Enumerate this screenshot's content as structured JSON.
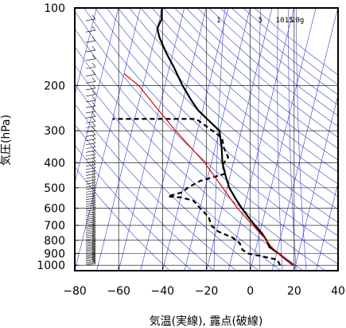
{
  "chart_data": {
    "type": "line",
    "subtype": "skew-T log-P sounding",
    "xlabel": "気温(実線), 露点(破線)",
    "ylabel": "気圧(hPa)",
    "xlim": [
      -80,
      40
    ],
    "ylim": [
      1050,
      100
    ],
    "y_scale": "log",
    "x_ticks": [
      -80,
      -60,
      -40,
      -20,
      0,
      20,
      40
    ],
    "x_tick_labels": [
      "−80",
      "−60",
      "−40",
      "−20",
      "0",
      "20",
      "40"
    ],
    "y_ticks": [
      100,
      200,
      300,
      400,
      500,
      600,
      700,
      800,
      900,
      1000
    ],
    "y_tick_labels": [
      "100",
      "200",
      "300",
      "400",
      "500",
      "600",
      "700",
      "800",
      "900",
      "1000"
    ],
    "mixing_ratio_labels": [
      "1",
      "5",
      "10",
      "15",
      "20g"
    ],
    "grid": true,
    "colors": {
      "temperature": "#000000",
      "dewpoint": "#000000",
      "parcel": "#e00000",
      "adiabats": "#3344cc",
      "grid": "#000000"
    },
    "series": [
      {
        "role": "temperature",
        "style": "solid",
        "points": [
          {
            "p": 1000,
            "t": 19
          },
          {
            "p": 950,
            "t": 15
          },
          {
            "p": 900,
            "t": 11
          },
          {
            "p": 850,
            "t": 6
          },
          {
            "p": 800,
            "t": 4
          },
          {
            "p": 750,
            "t": 1
          },
          {
            "p": 700,
            "t": -3
          },
          {
            "p": 650,
            "t": -7
          },
          {
            "p": 600,
            "t": -11
          },
          {
            "p": 550,
            "t": -15
          },
          {
            "p": 500,
            "t": -19
          },
          {
            "p": 450,
            "t": -22
          },
          {
            "p": 400,
            "t": -25
          },
          {
            "p": 350,
            "t": -27
          },
          {
            "p": 300,
            "t": -30
          },
          {
            "p": 270,
            "t": -37
          },
          {
            "p": 250,
            "t": -42
          },
          {
            "p": 230,
            "t": -46
          },
          {
            "p": 200,
            "t": -52
          },
          {
            "p": 170,
            "t": -58
          },
          {
            "p": 150,
            "t": -63
          },
          {
            "p": 130,
            "t": -68
          },
          {
            "p": 120,
            "t": -70
          },
          {
            "p": 110,
            "t": -69
          },
          {
            "p": 103,
            "t": -70
          },
          {
            "p": 100,
            "t": -70
          }
        ]
      },
      {
        "role": "dewpoint",
        "style": "dashed",
        "points": [
          {
            "p": 1000,
            "t": 13
          },
          {
            "p": 950,
            "t": 11
          },
          {
            "p": 900,
            "t": -3
          },
          {
            "p": 870,
            "t": -6
          },
          {
            "p": 820,
            "t": -8
          },
          {
            "p": 780,
            "t": -12
          },
          {
            "p": 740,
            "t": -19
          },
          {
            "p": 700,
            "t": -23
          },
          {
            "p": 650,
            "t": -25
          },
          {
            "p": 600,
            "t": -30
          },
          {
            "p": 560,
            "t": -34
          },
          {
            "p": 545,
            "t": -40
          },
          {
            "p": 540,
            "t": -46
          },
          {
            "p": 520,
            "t": -40
          },
          {
            "p": 500,
            "t": -38
          },
          {
            "p": 470,
            "t": -33
          },
          {
            "p": 440,
            "t": -22
          },
          {
            "p": 410,
            "t": -25
          },
          {
            "p": 380,
            "t": -23
          },
          {
            "p": 350,
            "t": -26
          },
          {
            "p": 320,
            "t": -28
          },
          {
            "p": 290,
            "t": -36
          },
          {
            "p": 270,
            "t": -42
          },
          {
            "p": 270,
            "t": -80
          }
        ]
      },
      {
        "role": "parcel",
        "style": "solid",
        "points": [
          {
            "p": 1000,
            "t": 19
          },
          {
            "p": 950,
            "t": 15
          },
          {
            "p": 900,
            "t": 11
          },
          {
            "p": 850,
            "t": 7
          },
          {
            "p": 800,
            "t": 4
          },
          {
            "p": 700,
            "t": -4
          },
          {
            "p": 600,
            "t": -13
          },
          {
            "p": 500,
            "t": -22
          },
          {
            "p": 400,
            "t": -33
          },
          {
            "p": 300,
            "t": -50
          },
          {
            "p": 250,
            "t": -60
          },
          {
            "p": 200,
            "t": -72
          },
          {
            "p": 180,
            "t": -80
          }
        ]
      }
    ]
  }
}
